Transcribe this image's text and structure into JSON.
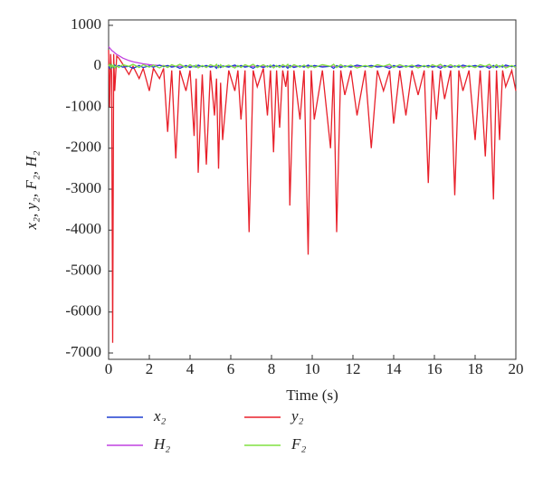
{
  "chart_data": {
    "type": "line",
    "xlabel": "Time (s)",
    "ylabel": "x₂, y₂, F₂, H₂",
    "x": [
      0,
      0.05,
      0.1,
      0.15,
      0.2,
      0.25,
      0.3,
      0.4,
      0.5,
      0.7,
      1.0,
      1.2,
      1.5,
      1.7,
      2.0,
      2.2,
      2.5,
      2.7,
      2.9,
      3.1,
      3.3,
      3.5,
      3.8,
      4.0,
      4.2,
      4.3,
      4.4,
      4.6,
      4.8,
      5.0,
      5.2,
      5.3,
      5.4,
      5.5,
      5.6,
      5.9,
      6.2,
      6.35,
      6.5,
      6.7,
      6.9,
      7.1,
      7.3,
      7.6,
      7.8,
      7.95,
      8.1,
      8.25,
      8.4,
      8.55,
      8.7,
      8.8,
      8.9,
      9.1,
      9.4,
      9.6,
      9.8,
      9.95,
      10.1,
      10.5,
      10.9,
      11.05,
      11.2,
      11.4,
      11.6,
      11.9,
      12.2,
      12.6,
      12.9,
      13.2,
      13.5,
      13.8,
      14.0,
      14.3,
      14.6,
      14.9,
      15.2,
      15.5,
      15.7,
      15.9,
      16.1,
      16.3,
      16.5,
      16.8,
      17.0,
      17.2,
      17.4,
      17.7,
      18.0,
      18.25,
      18.5,
      18.7,
      18.9,
      19.05,
      19.2,
      19.35,
      19.5,
      19.8,
      20
    ],
    "series": [
      {
        "name": "y₂",
        "color": "#e8202a",
        "values": [
          400,
          -1000,
          300,
          -200,
          -6750,
          300,
          -600,
          250,
          200,
          50,
          -200,
          0,
          -300,
          -50,
          -600,
          -50,
          -300,
          -50,
          -1600,
          -100,
          -2250,
          -100,
          -600,
          -100,
          -1700,
          -300,
          -2600,
          -200,
          -2400,
          -100,
          -1200,
          -300,
          -2500,
          -400,
          -1800,
          -100,
          -600,
          -100,
          -1300,
          -100,
          -4050,
          -100,
          -500,
          -50,
          -1200,
          -100,
          -2100,
          -100,
          -1500,
          -100,
          -500,
          -100,
          -3400,
          -100,
          -1300,
          -100,
          -4600,
          -100,
          -1300,
          -100,
          -2000,
          -100,
          -4050,
          -100,
          -700,
          -100,
          -1200,
          -100,
          -2000,
          -100,
          -600,
          -100,
          -1400,
          -100,
          -1200,
          -100,
          -700,
          -100,
          -2850,
          -100,
          -1300,
          -100,
          -800,
          -100,
          -3150,
          -100,
          -600,
          -100,
          -1800,
          -100,
          -2200,
          -100,
          -3250,
          -100,
          -1800,
          -100,
          -500,
          -100,
          -600
        ]
      },
      {
        "name": "H₂",
        "color": "#c040e0",
        "values": [
          480,
          450,
          420,
          390,
          370,
          350,
          330,
          290,
          260,
          200,
          140,
          110,
          80,
          60,
          40,
          30,
          20,
          15,
          10,
          0,
          0,
          0,
          0,
          0,
          0,
          0,
          0,
          0,
          0,
          0,
          0,
          0,
          0,
          0,
          0,
          0,
          0,
          0,
          0,
          0,
          0,
          0,
          0,
          0,
          0,
          0,
          0,
          0,
          0,
          0,
          0,
          0,
          0,
          0,
          0,
          0,
          0,
          0,
          0,
          0,
          0,
          0,
          0,
          0,
          0,
          0,
          0,
          0,
          0,
          0,
          0,
          0,
          0,
          0,
          0,
          0,
          0,
          0,
          0,
          0,
          0,
          0,
          0,
          0,
          0,
          0,
          0,
          0,
          0,
          0,
          0,
          0,
          0,
          0,
          0,
          0,
          0,
          0,
          0
        ]
      },
      {
        "name": "x₂",
        "color": "#1f3fd0",
        "values": [
          0,
          -50,
          20,
          -30,
          10,
          -20,
          30,
          -10,
          20,
          -20,
          0,
          -50,
          20,
          -30,
          10,
          -20,
          30,
          -10,
          20,
          -20,
          0,
          -50,
          20,
          -30,
          10,
          -20,
          30,
          -10,
          20,
          -20,
          0,
          -50,
          20,
          -30,
          10,
          -20,
          30,
          -10,
          20,
          -20,
          0,
          -50,
          20,
          -30,
          10,
          -20,
          30,
          -10,
          20,
          -20,
          0,
          -50,
          20,
          -30,
          10,
          -20,
          30,
          -10,
          20,
          -20,
          0,
          -50,
          20,
          -30,
          10,
          -20,
          30,
          -10,
          20,
          -20,
          0,
          -50,
          20,
          -30,
          10,
          -20,
          30,
          -10,
          20,
          -20,
          0,
          -50,
          20,
          -30,
          10,
          -20,
          30,
          -10,
          20,
          -20,
          0,
          -50,
          20,
          -30,
          10,
          -20,
          30,
          -10,
          20
        ]
      },
      {
        "name": "F₂",
        "color": "#80e040",
        "values": [
          0,
          50,
          -30,
          40,
          -20,
          30,
          -40,
          20,
          -30,
          40,
          0,
          50,
          -30,
          40,
          -20,
          30,
          -40,
          20,
          -30,
          40,
          0,
          50,
          -30,
          40,
          -20,
          30,
          -40,
          20,
          -30,
          40,
          0,
          50,
          -30,
          40,
          -20,
          30,
          -40,
          20,
          -30,
          40,
          0,
          50,
          -30,
          40,
          -20,
          30,
          -40,
          20,
          -30,
          40,
          0,
          50,
          -30,
          40,
          -20,
          30,
          -40,
          20,
          -30,
          40,
          0,
          50,
          -30,
          40,
          -20,
          30,
          -40,
          20,
          -30,
          40,
          0,
          50,
          -30,
          40,
          -20,
          30,
          -40,
          20,
          -30,
          40,
          0,
          50,
          -30,
          40,
          -20,
          30,
          -40,
          20,
          -30,
          40,
          0,
          50,
          -30,
          40,
          -20,
          30,
          -40,
          20,
          -30
        ]
      }
    ],
    "legend_order": [
      2,
      1,
      0,
      3
    ],
    "xlim": [
      0,
      20
    ],
    "xticks": [
      0,
      2,
      4,
      6,
      8,
      10,
      12,
      14,
      16,
      18,
      20
    ],
    "ylim": [
      -7000,
      1000
    ],
    "yticks": [
      -7000,
      -6000,
      -5000,
      -4000,
      -3000,
      -2000,
      -1000,
      0,
      1000
    ],
    "grid": false
  }
}
